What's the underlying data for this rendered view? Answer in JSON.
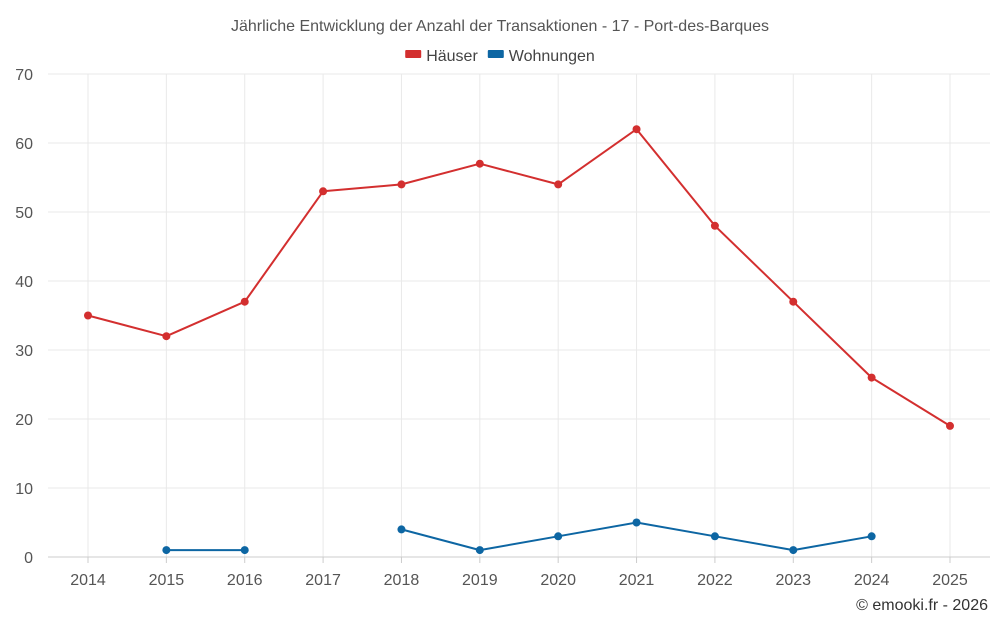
{
  "chart_data": {
    "type": "line",
    "title": "Jährliche Entwicklung der Anzahl der Transaktionen - 17 - Port-des-Barques",
    "categories": [
      "2014",
      "2015",
      "2016",
      "2017",
      "2018",
      "2019",
      "2020",
      "2021",
      "2022",
      "2023",
      "2024",
      "2025"
    ],
    "ylim": [
      0,
      70
    ],
    "yticks": [
      0,
      10,
      20,
      30,
      40,
      50,
      60,
      70
    ],
    "grid": true,
    "legend_position": "top-center",
    "series": [
      {
        "name": "Häuser",
        "color": "#d32f2f",
        "values": [
          35,
          32,
          37,
          53,
          54,
          57,
          54,
          62,
          48,
          37,
          26,
          19
        ]
      },
      {
        "name": "Wohnungen",
        "color": "#0d66a3",
        "values": [
          null,
          1,
          1,
          null,
          4,
          1,
          3,
          5,
          3,
          1,
          3,
          null
        ]
      }
    ]
  },
  "credit": "© emooki.fr - 2026"
}
